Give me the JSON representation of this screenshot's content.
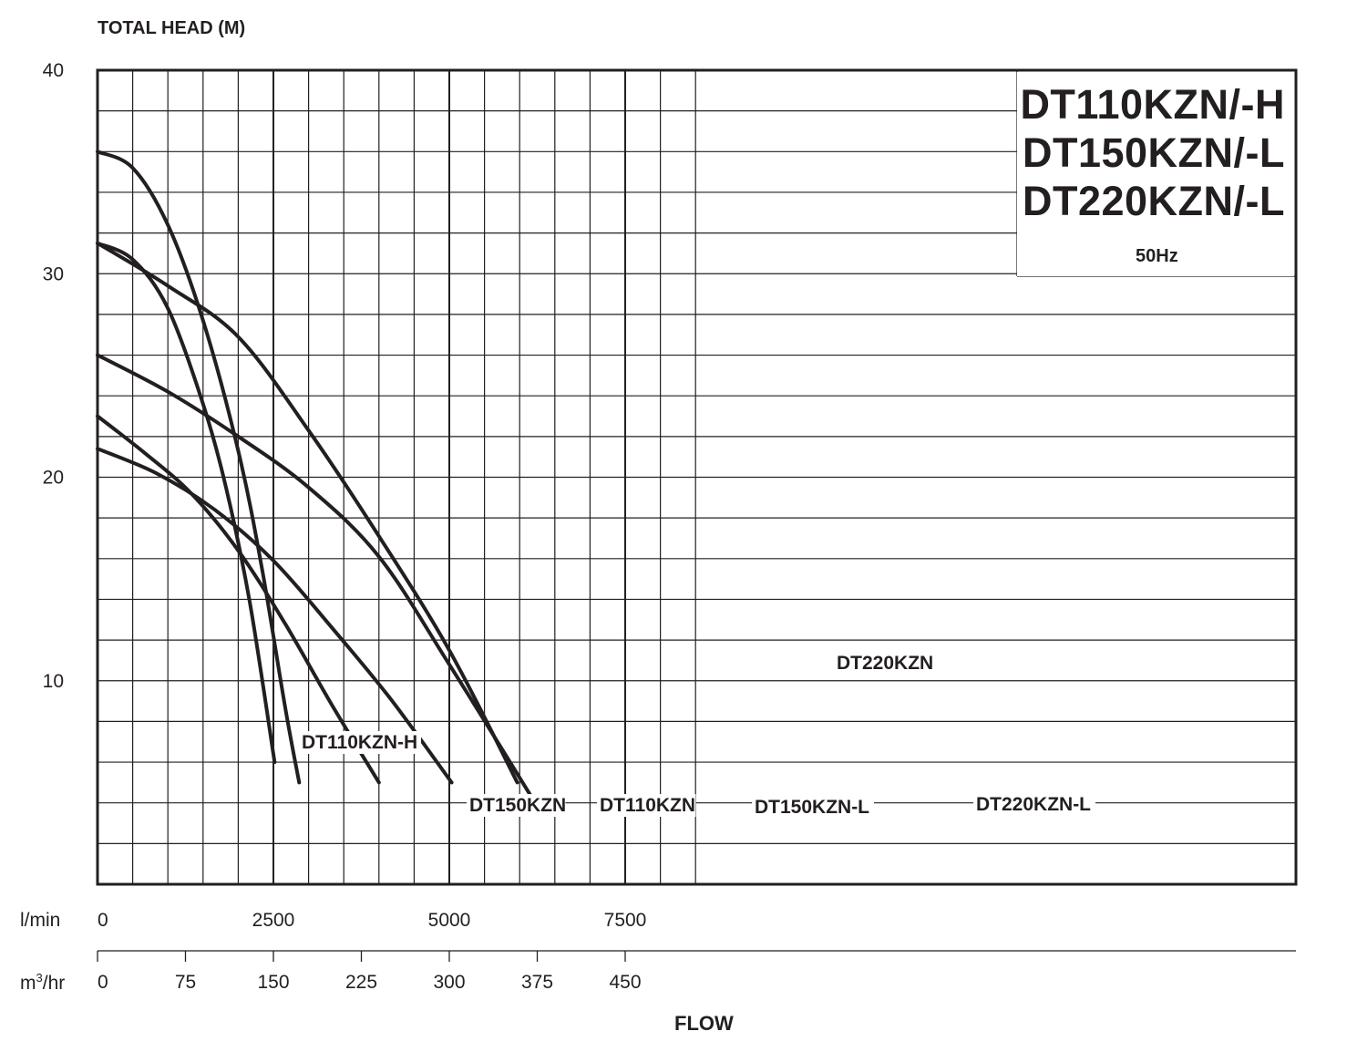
{
  "titles": [
    "DT110KZN/-H",
    "DT150KZN/-L",
    "DT220KZN/-L"
  ],
  "frequency": "50Hz",
  "ylabel": "TOTAL HEAD (M)",
  "xlabel": "FLOW",
  "units": {
    "lmin": "l/min",
    "m3hr_base": "m",
    "m3hr_sup": "3",
    "m3hr_tail": "/hr"
  },
  "chart_data": {
    "type": "line",
    "title": "DT110KZN/-H DT150KZN/-L DT220KZN/-L",
    "subtitle": "50Hz",
    "xlabel": "FLOW",
    "ylabel": "TOTAL HEAD (M)",
    "x_unit": "m3/hr",
    "xlim": [
      0,
      512
    ],
    "ylim": [
      0,
      40
    ],
    "grid": true,
    "y_ticks": [
      10,
      20,
      30,
      40
    ],
    "x_ticks_m3hr": [
      0,
      75,
      150,
      225,
      300,
      375,
      450
    ],
    "x_ticks_lmin": [
      0,
      2500,
      5000,
      7500
    ],
    "series": [
      {
        "name": "DT110KZN-H",
        "x": [
          0,
          30,
          60,
          90,
          110,
          130,
          151
        ],
        "y": [
          31.5,
          30.7,
          28.3,
          23.6,
          19.4,
          13.8,
          6
        ]
      },
      {
        "name": "DT150KZN",
        "x": [
          0,
          30,
          60,
          90,
          120,
          140,
          160,
          172
        ],
        "y": [
          36,
          35.2,
          32.4,
          27.7,
          21.3,
          15.6,
          8.7,
          5
        ]
      },
      {
        "name": "DT110KZN",
        "x": [
          0,
          40,
          80,
          120,
          160,
          200,
          240
        ],
        "y": [
          23,
          21.2,
          19.2,
          16.4,
          12.8,
          8.8,
          5
        ]
      },
      {
        "name": "DT150KZN-L",
        "x": [
          0,
          50,
          100,
          150,
          200,
          250,
          302
        ],
        "y": [
          21.4,
          20.2,
          18.4,
          15.9,
          12.6,
          9.1,
          5
        ]
      },
      {
        "name": "DT220KZN",
        "x": [
          0,
          60,
          120,
          180,
          240,
          300,
          358
        ],
        "y": [
          31.5,
          29.4,
          26.9,
          22.3,
          17.1,
          11.5,
          5
        ]
      },
      {
        "name": "DT220KZN-L",
        "x": [
          0,
          60,
          120,
          180,
          240,
          300,
          370
        ],
        "y": [
          26,
          24.2,
          22,
          19.5,
          16.1,
          10.8,
          4.3
        ]
      }
    ],
    "annotations": [
      {
        "text": "DT110KZN-H",
        "anchor": "end"
      },
      {
        "text": "DT150KZN",
        "anchor": "bottom"
      },
      {
        "text": "DT110KZN",
        "anchor": "bottom"
      },
      {
        "text": "DT150KZN-L",
        "anchor": "bottom"
      },
      {
        "text": "DT220KZN",
        "anchor": "middle"
      },
      {
        "text": "DT220KZN-L",
        "anchor": "end"
      }
    ]
  }
}
